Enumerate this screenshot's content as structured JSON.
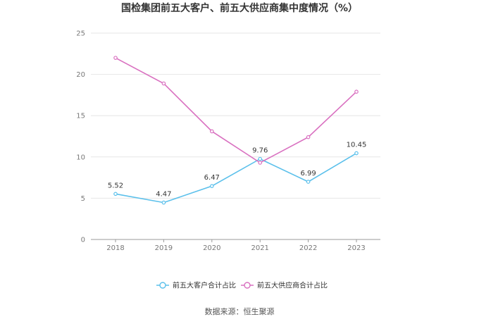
{
  "chart_data": {
    "type": "line",
    "title": "国检集团前五大客户、前五大供应商集中度情况（%）",
    "categories": [
      "2018",
      "2019",
      "2020",
      "2021",
      "2022",
      "2023"
    ],
    "ylim": [
      0,
      25
    ],
    "yticks": [
      0,
      5,
      10,
      15,
      20,
      25
    ],
    "grid": true,
    "legend_position": "bottom",
    "series": [
      {
        "name": "前五大客户合计占比",
        "color": "#5bc0eb",
        "values": [
          5.52,
          4.47,
          6.47,
          9.76,
          6.99,
          10.45
        ],
        "labels": [
          "5.52",
          "4.47",
          "6.47",
          "9.76",
          "6.99",
          "10.45"
        ]
      },
      {
        "name": "前五大供应商合计占比",
        "color": "#d970c0",
        "values": [
          22.0,
          18.9,
          13.1,
          9.3,
          12.4,
          17.9
        ],
        "labels": []
      }
    ]
  },
  "source": "数据来源：恒生聚源"
}
